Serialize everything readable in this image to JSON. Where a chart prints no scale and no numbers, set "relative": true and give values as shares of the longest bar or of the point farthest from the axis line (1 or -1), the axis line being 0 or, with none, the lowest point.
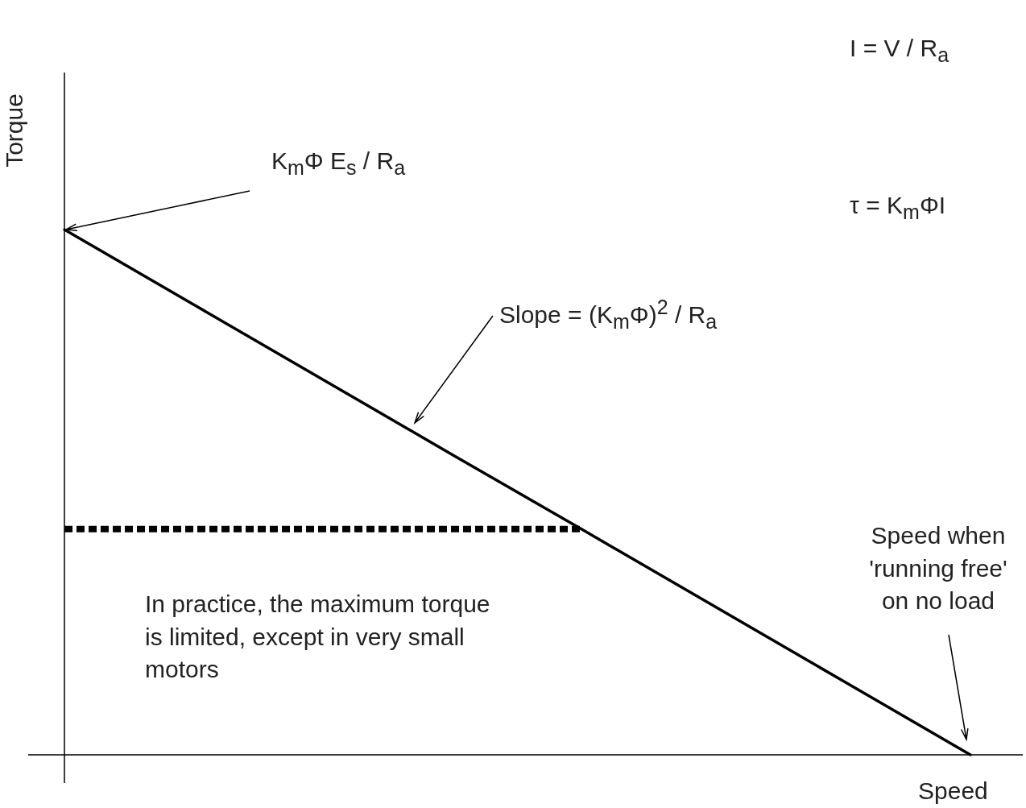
{
  "chart_data": {
    "type": "line",
    "relative": true,
    "xlabel": "Speed",
    "ylabel": "Torque",
    "legend": false,
    "categories": [
      null,
      null,
      null,
      null,
      null,
      null,
      null,
      null
    ],
    "series": [
      {
        "color": "#000000",
        "values": [
          1,
          0.857,
          0.714,
          0.571,
          0.429,
          0.286,
          0.143,
          0
        ],
        "line_style": "solid"
      },
      {
        "color": "#000000",
        "values": [
          0.43,
          0.43,
          0.43,
          0.43,
          0.43,
          null,
          null,
          null
        ],
        "line_style": "dotted"
      }
    ],
    "marker": "none",
    "annotations": [
      "K$_{m}$Φ E$_{s}$ / R$_{a}$",
      "Slope = (K$_{m}$Φ)$^{2}$ / R$_{a}$",
      "Speed when 'running free' on no load",
      "In practice, the maximum torque is limited, except in very small motors",
      "I = V / R$_{a}$",
      "τ = K$_{m}$ΦI"
    ]
  }
}
